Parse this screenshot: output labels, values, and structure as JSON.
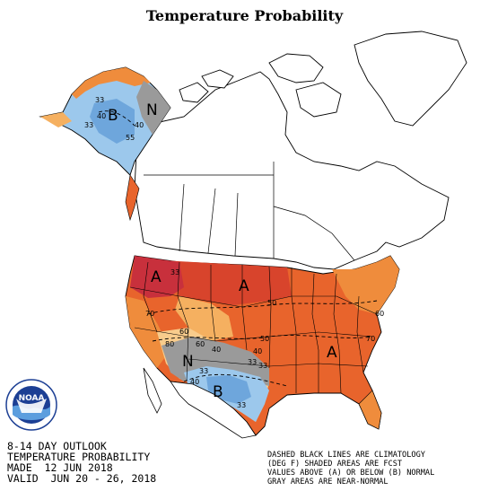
{
  "title": "Temperature Probability",
  "caption": {
    "line1": "8-14 DAY OUTLOOK",
    "line2": "TEMPERATURE PROBABILITY",
    "line3": "MADE  12 JUN 2018",
    "line4": "VALID  JUN 20 - 26, 2018"
  },
  "legend": {
    "line1": "DASHED BLACK LINES ARE CLIMATOLOGY",
    "line2": "(DEG F) SHADED AREAS ARE FCST",
    "line3": "VALUES ABOVE (A) OR BELOW (B) NORMAL",
    "line4": "GRAY AREAS ARE NEAR-NORMAL"
  },
  "logo": {
    "text": "NOAA"
  },
  "map_labels": {
    "ak_B": "B",
    "ak_N": "N",
    "ak_33a": "33",
    "ak_40": "40",
    "ak_33b": "33",
    "ak_40b": "40",
    "ak_55": "55",
    "nw_A": "A",
    "nw_33": "33",
    "n_A": "A",
    "n_50": "50",
    "w_70": "70",
    "w_60": "60",
    "w_80": "80",
    "w_60b": "60",
    "w_40": "40",
    "c_50": "50",
    "c_40": "40",
    "c_33": "33",
    "sw_N": "N",
    "sw_B": "B",
    "sw_40": "40",
    "sw_33": "33",
    "sw_33b": "33",
    "sw_33c": "33",
    "se_A": "A",
    "e_60": "60",
    "e_70": "70"
  },
  "colors": {
    "dark_red": "#c8303c",
    "red": "#d8442c",
    "orange_red": "#e8642c",
    "orange": "#ef8c3c",
    "light_orange": "#f5b060",
    "pale_orange": "#f8cc8c",
    "gray": "#9a9a9a",
    "light_blue": "#9cc8ec",
    "blue": "#6ea6dc",
    "outline": "#000000"
  }
}
